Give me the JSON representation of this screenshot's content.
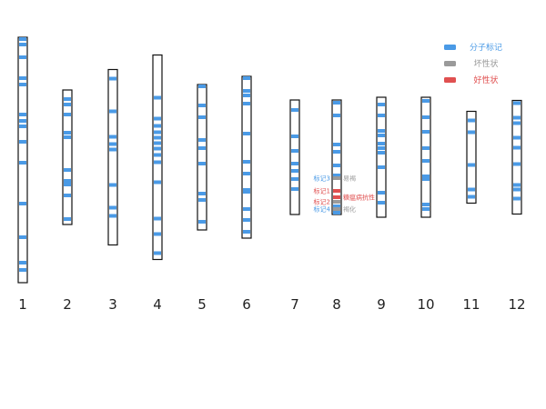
{
  "colors": {
    "marker": "#4a9ae6",
    "bad": "#9a9a9a",
    "good": "#e05050",
    "outline": "#111111"
  },
  "legend": [
    {
      "label": "分子标记",
      "color": "#4a9ae6"
    },
    {
      "label": "坏性状",
      "color": "#9a9a9a"
    },
    {
      "label": "好性状",
      "color": "#e05050"
    }
  ],
  "chromosomes": [
    {
      "label": "1",
      "length": 270,
      "markers": [
        2,
        8,
        22,
        45,
        52,
        85,
        92,
        98,
        115,
        138,
        183,
        220,
        248,
        256
      ]
    },
    {
      "label": "2",
      "length": 148,
      "markers": [
        10,
        16,
        27,
        47,
        52,
        88,
        100,
        104,
        116,
        142
      ]
    },
    {
      "label": "3",
      "length": 193,
      "markers": [
        10,
        46,
        74,
        82,
        88,
        127,
        152,
        161
      ]
    },
    {
      "label": "4",
      "length": 225,
      "markers": [
        47,
        70,
        78,
        85,
        91,
        97,
        103,
        110,
        118,
        140,
        180,
        197,
        218
      ]
    },
    {
      "label": "5",
      "length": 160,
      "markers": [
        2,
        23,
        36,
        61,
        70,
        87,
        120,
        127,
        151
      ]
    },
    {
      "label": "6",
      "length": 178,
      "markers": [
        2,
        16,
        21,
        30,
        63,
        94,
        107,
        125,
        127,
        146,
        158,
        171
      ]
    },
    {
      "label": "7",
      "length": 126,
      "markers": [
        11,
        40,
        56,
        70,
        78,
        87,
        98
      ]
    },
    {
      "label": "8",
      "length": 126,
      "markers": [
        3,
        17,
        49,
        57,
        72,
        83,
        117,
        124
      ]
    },
    {
      "label": "9",
      "length": 132,
      "markers": [
        8,
        20,
        37,
        42,
        51,
        56,
        61,
        77,
        105,
        116
      ]
    },
    {
      "label": "10",
      "length": 132,
      "markers": [
        4,
        22,
        38,
        56,
        70,
        87,
        90,
        118,
        123
      ]
    },
    {
      "label": "11",
      "length": 101,
      "markers": [
        10,
        23,
        59,
        86,
        94
      ]
    },
    {
      "label": "12",
      "length": 125,
      "markers": [
        3,
        19,
        25,
        41,
        52,
        70,
        93,
        98,
        108
      ]
    }
  ],
  "annotations": [
    {
      "chromosome": "8",
      "pos": 86,
      "left_label": "标记3",
      "left_type": "marker",
      "right_label": "易褐",
      "right_type": "bad"
    },
    {
      "chromosome": "8",
      "pos": 100,
      "left_label": "标记1",
      "left_type": "good",
      "right_label": "",
      "right_type": "good"
    },
    {
      "chromosome": "8",
      "pos": 107,
      "left_label": "",
      "left_type": "marker",
      "right_label": "糖瘟病抗性",
      "right_type": "good"
    },
    {
      "chromosome": "8",
      "pos": 112,
      "left_label": "标记2",
      "left_type": "good",
      "right_label": "",
      "right_type": "bad"
    },
    {
      "chromosome": "8",
      "pos": 120,
      "left_label": "标记4",
      "left_type": "marker",
      "right_label": "褐化",
      "right_type": "bad"
    }
  ]
}
